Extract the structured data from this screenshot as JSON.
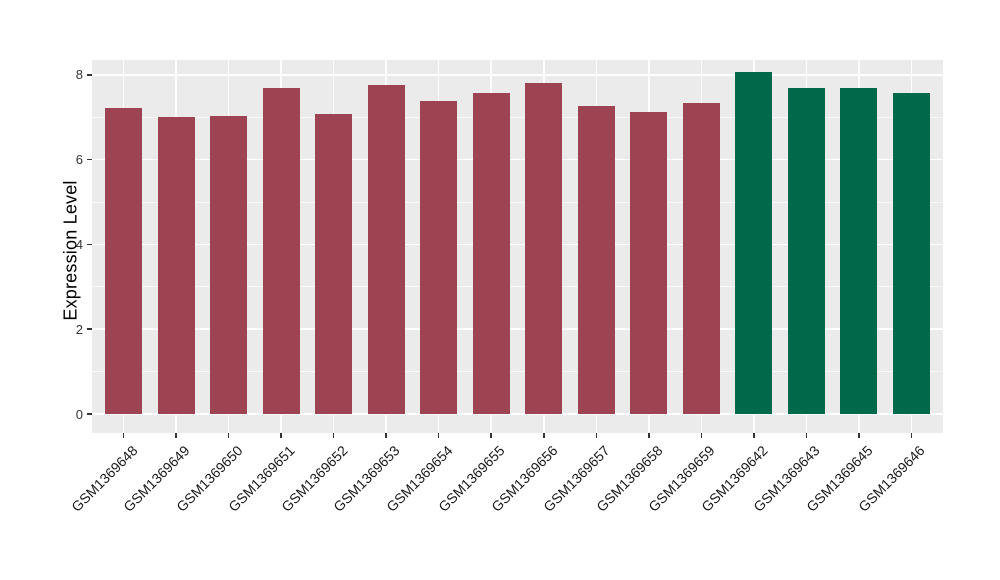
{
  "chart_data": {
    "type": "bar",
    "title": "",
    "xlabel": "",
    "ylabel": "Expression Level",
    "categories": [
      "GSM1369648",
      "GSM1369649",
      "GSM1369650",
      "GSM1369651",
      "GSM1369652",
      "GSM1369653",
      "GSM1369654",
      "GSM1369655",
      "GSM1369656",
      "GSM1369657",
      "GSM1369658",
      "GSM1369659",
      "GSM1369642",
      "GSM1369643",
      "GSM1369645",
      "GSM1369646"
    ],
    "values": [
      7.21,
      7.01,
      7.03,
      7.7,
      7.07,
      7.75,
      7.39,
      7.57,
      7.81,
      7.26,
      7.12,
      7.34,
      8.06,
      7.68,
      7.68,
      7.56
    ],
    "bar_colors": [
      "#9E4352",
      "#9E4352",
      "#9E4352",
      "#9E4352",
      "#9E4352",
      "#9E4352",
      "#9E4352",
      "#9E4352",
      "#9E4352",
      "#9E4352",
      "#9E4352",
      "#9E4352",
      "#00694A",
      "#00694A",
      "#00694A",
      "#00694A"
    ],
    "yticks": [
      0,
      2,
      4,
      6,
      8
    ],
    "yticks_minor": [
      1,
      3,
      5,
      7
    ],
    "ylim": [
      -0.45,
      8.36
    ],
    "grid": true,
    "legend_position": "none",
    "colors": {
      "bar_maroon": "#9E4352",
      "bar_green": "#00694A",
      "panel_background": "#EBEBEB",
      "gridline": "#FFFFFF",
      "axis_text": "#333333",
      "axis_title": "#000000"
    }
  }
}
